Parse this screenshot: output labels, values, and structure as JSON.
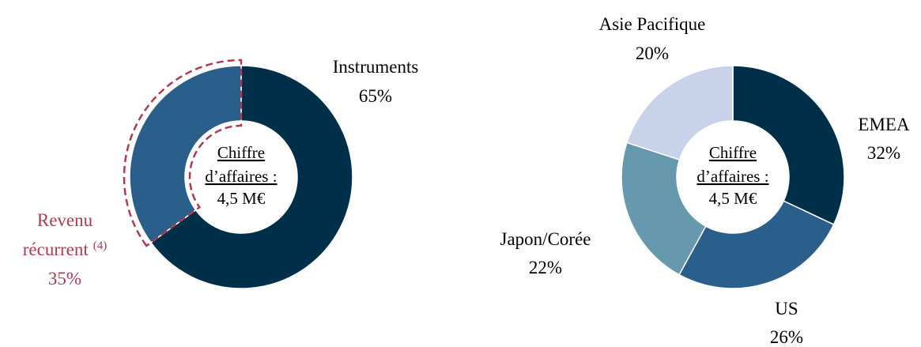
{
  "chart_data": [
    {
      "type": "pie",
      "title": "",
      "center_text": {
        "line1": "Chiffre",
        "line2": "d’affaires :",
        "line3": "4,5 M€"
      },
      "slices": [
        {
          "label": "Instruments",
          "value": 65,
          "value_text": "65%",
          "color": "#003049"
        },
        {
          "label": "Revenu",
          "label_line2": "récurrent",
          "superscript": "(4)",
          "value": 35,
          "value_text": "35%",
          "color": "#2b5f8b",
          "highlighted": true
        }
      ],
      "highlight_color": "#b03a4e"
    },
    {
      "type": "pie",
      "title": "",
      "center_text": {
        "line1": "Chiffre",
        "line2": "d’affaires :",
        "line3": "4,5 M€"
      },
      "slices": [
        {
          "label": "EMEA",
          "value": 32,
          "value_text": "32%",
          "color": "#003049"
        },
        {
          "label": "US",
          "value": 26,
          "value_text": "26%",
          "color": "#2b5f8b"
        },
        {
          "label": "Japon/Corée",
          "value": 22,
          "value_text": "22%",
          "color": "#6699ad"
        },
        {
          "label": "Asie Pacifique",
          "value": 20,
          "value_text": "20%",
          "color": "#c8d3ea"
        }
      ]
    }
  ]
}
